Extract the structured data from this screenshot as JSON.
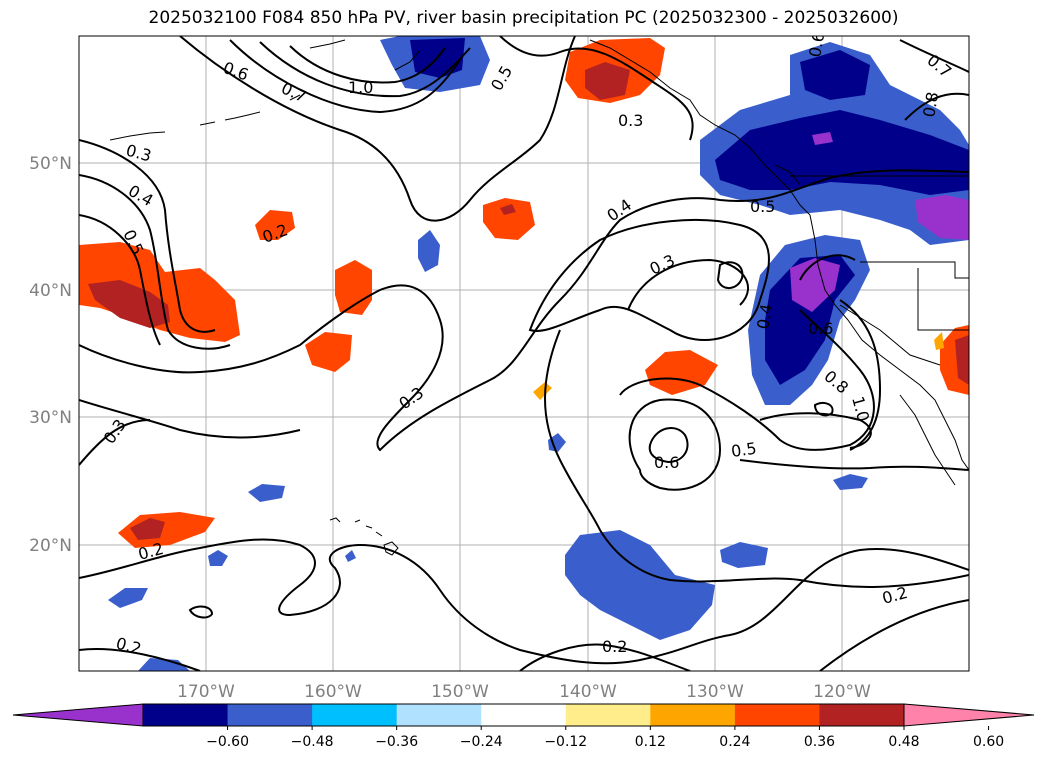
{
  "title": "2025032100 F084 850 hPa PV, river basin precipitation PC (2025032300 - 2025032600)",
  "lat_ticks": [
    "50°N",
    "40°N",
    "30°N",
    "20°N"
  ],
  "lon_ticks": [
    "170°W",
    "160°W",
    "150°W",
    "140°W",
    "130°W",
    "120°W"
  ],
  "contour_labels": [
    "0.6",
    "0.7",
    "1.0",
    "0.5",
    "0.3",
    "0.3",
    "0.4",
    "0.5",
    "0.2",
    "0.4",
    "0.3",
    "0.5",
    "0.4",
    "0.6",
    "0.3",
    "0.3",
    "0.6",
    "0.5",
    "0.8",
    "1.0",
    "0.2",
    "0.2",
    "0.2",
    "0.2",
    "0.7",
    "0.8",
    "0.6"
  ],
  "colorbar": {
    "ticks": [
      "−0.60",
      "−0.48",
      "−0.36",
      "−0.24",
      "−0.12",
      "0.12",
      "0.24",
      "0.36",
      "0.48",
      "0.60"
    ],
    "colors": [
      "#9932cc",
      "#00008b",
      "#3a5fcd",
      "#00bfff",
      "#b0e2ff",
      "#ffffff",
      "#ffec8b",
      "#ffa500",
      "#ff4500",
      "#b22222",
      "#ff82ab"
    ]
  }
}
